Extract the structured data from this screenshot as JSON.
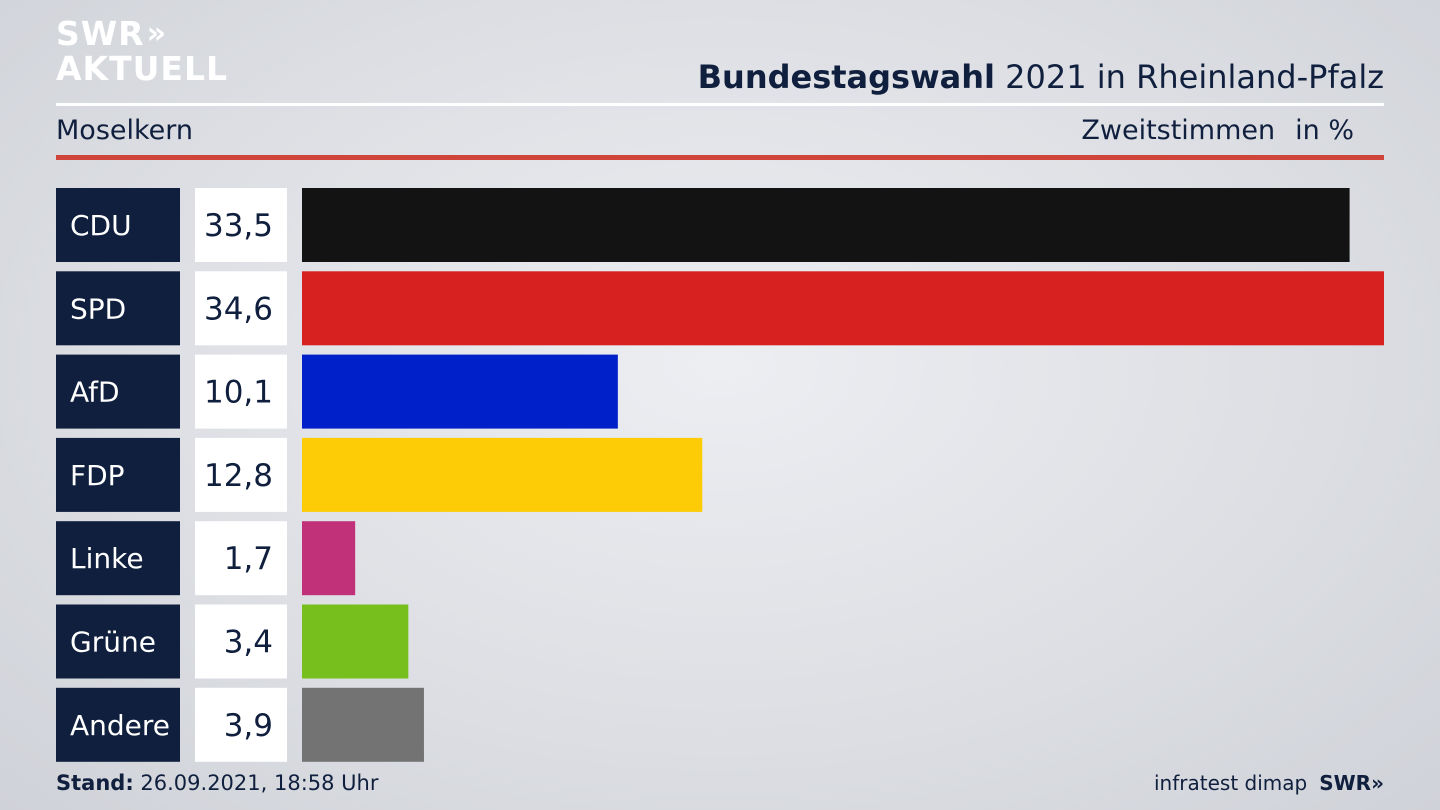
{
  "header": {
    "logo_line1": "SWR",
    "logo_chevrons": "»",
    "logo_line2": "AKTUELL",
    "title_bold": "Bundestagswahl",
    "title_rest": " 2021 in Rheinland-Pfalz",
    "region": "Moselkern",
    "subtitle_measure": "Zweitstimmen",
    "subtitle_unit": "in %"
  },
  "chart_data": {
    "type": "bar",
    "orientation": "horizontal",
    "categories": [
      "CDU",
      "SPD",
      "AfD",
      "FDP",
      "Linke",
      "Grüne",
      "Andere"
    ],
    "values": [
      33.5,
      34.6,
      10.1,
      12.8,
      1.7,
      3.4,
      3.9
    ],
    "value_labels": [
      "33,5",
      "34,6",
      "10,1",
      "12,8",
      "1,7",
      "3,4",
      "3,9"
    ],
    "colors": [
      "#131313",
      "#d72020",
      "#0021c9",
      "#fdcc06",
      "#c0317a",
      "#76bf1c",
      "#737373"
    ],
    "label_box_color": "#0f1f3d",
    "unit": "%"
  },
  "footer": {
    "stand_label": "Stand:",
    "stand_value": " 26.09.2021, 18:58 Uhr",
    "source": "infratest dimap",
    "brand": "SWR»"
  }
}
